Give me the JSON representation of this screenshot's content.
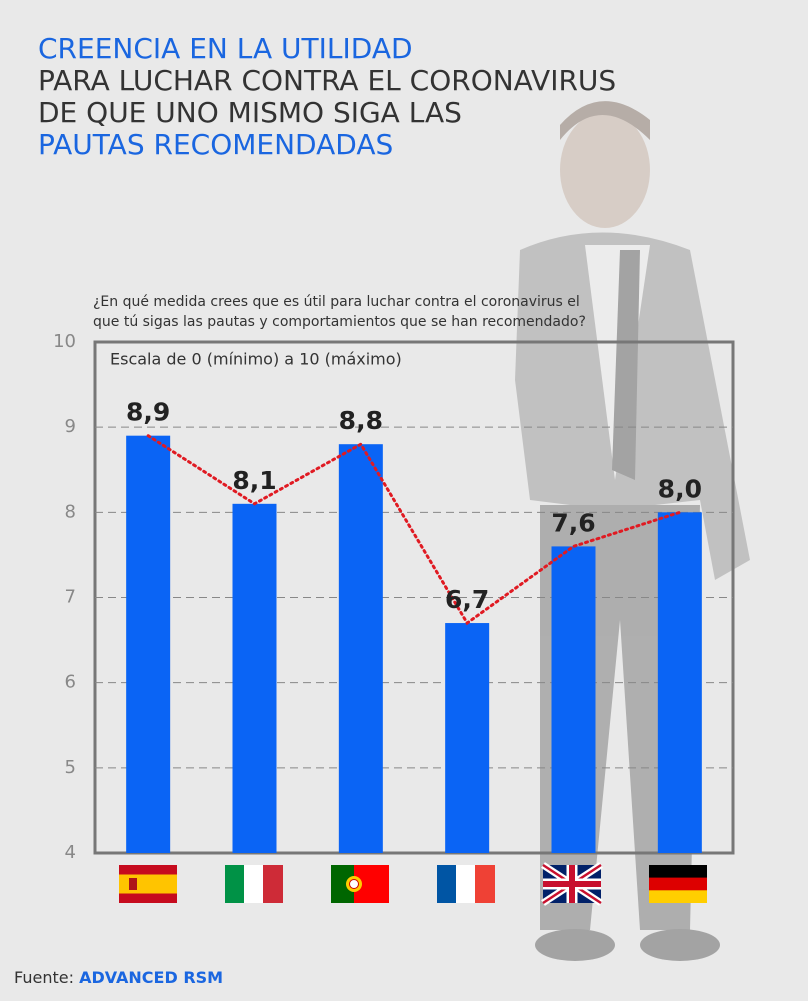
{
  "chart_data": {
    "type": "bar",
    "title_lines": [
      {
        "text": "CREENCIA EN LA UTILIDAD",
        "color": "#1a66e0"
      },
      {
        "text": "PARA LUCHAR CONTRA EL CORONAVIRUS",
        "color": "#333333"
      },
      {
        "text": "DE QUE UNO MISMO SIGA LAS",
        "color": "#333333"
      },
      {
        "text": "PAUTAS RECOMENDADAS",
        "color": "#1a66e0"
      }
    ],
    "subtitle_lines": [
      "¿En qué medida crees que es útil para luchar contra el coronavirus el",
      "que tú sigas las pautas y comportamientos que se han recomendado?"
    ],
    "note": "Escala de 0 (mínimo) a 10 (máximo)",
    "categories": [
      null,
      null,
      null,
      null,
      null,
      null
    ],
    "values": [
      8.9,
      8.1,
      8.8,
      6.7,
      7.6,
      8.0
    ],
    "value_labels": [
      "8,9",
      "8,1",
      "8,8",
      "6,7",
      "7,6",
      "8,0"
    ],
    "color": "#0a64f5",
    "trend_color": "#e01a22",
    "ylim": [
      4,
      10
    ],
    "yticks": [
      4,
      5,
      6,
      7,
      8,
      9,
      10
    ],
    "grid": true,
    "source_label": "Fuente:",
    "source": "ADVANCED RSM"
  }
}
